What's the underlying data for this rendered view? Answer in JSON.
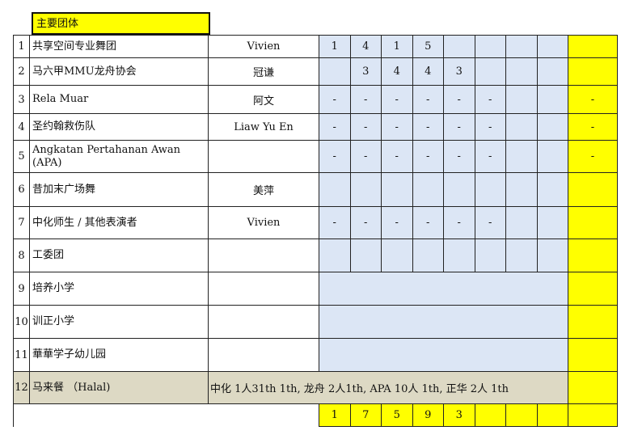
{
  "header": {
    "title": "主要团体"
  },
  "colors": {
    "yellow": "#ffff00",
    "light_blue": "#dce6f5",
    "tan": "#ddd9c4"
  },
  "rows": [
    {
      "num": "1",
      "name": "共享空间专业舞团",
      "contact": "Vivien",
      "days": [
        "1",
        "4",
        "1",
        "5",
        "",
        "",
        "",
        ""
      ],
      "total": ""
    },
    {
      "num": "2",
      "name": "马六甲MMU龙舟协会",
      "contact": "冠谦",
      "days": [
        "",
        "3",
        "4",
        "4",
        "3",
        "",
        "",
        ""
      ],
      "total": ""
    },
    {
      "num": "3",
      "name": "Rela Muar",
      "contact": "阿文",
      "days": [
        "-",
        "-",
        "-",
        "-",
        "-",
        "-",
        "",
        ""
      ],
      "total": "-"
    },
    {
      "num": "4",
      "name": "圣约翰救伤队",
      "contact": "Liaw Yu En",
      "days": [
        "-",
        "-",
        "-",
        "-",
        "-",
        "-",
        "",
        ""
      ],
      "total": "-"
    },
    {
      "num": "5",
      "name": "Angkatan Pertahanan Awan (APA)",
      "contact": "",
      "days": [
        "-",
        "-",
        "-",
        "-",
        "-",
        "-",
        "",
        ""
      ],
      "total": "-"
    },
    {
      "num": "6",
      "name": "昔加末广场舞",
      "contact": "美萍",
      "days": [
        "",
        "",
        "",
        "",
        "",
        "",
        "",
        ""
      ],
      "total": ""
    },
    {
      "num": "7",
      "name": "中化师生 / 其他表演者",
      "contact": "Vivien",
      "days": [
        "-",
        "-",
        "-",
        "-",
        "-",
        "-",
        "",
        ""
      ],
      "total": ""
    },
    {
      "num": "8",
      "name": "工委团",
      "contact": "",
      "days": [
        "",
        "",
        "",
        "",
        "",
        "",
        "",
        ""
      ],
      "total": ""
    },
    {
      "num": "9",
      "name": "培养小学",
      "contact": "",
      "merged": true,
      "total": ""
    },
    {
      "num": "10",
      "name": "训正小学",
      "contact": "",
      "merged": true,
      "total": ""
    },
    {
      "num": "11",
      "name": "華華学子幼儿园",
      "contact": "",
      "merged": true,
      "total": ""
    },
    {
      "num": "12",
      "name": "马来餐 （Halal)",
      "note": "中化 1人31th 1th, 龙舟 2人1th, APA 10人 1th, 正华 2人 1th",
      "total": ""
    }
  ],
  "totals": {
    "days": [
      "1",
      "7",
      "5",
      "9",
      "3",
      "",
      "",
      ""
    ],
    "total": ""
  }
}
